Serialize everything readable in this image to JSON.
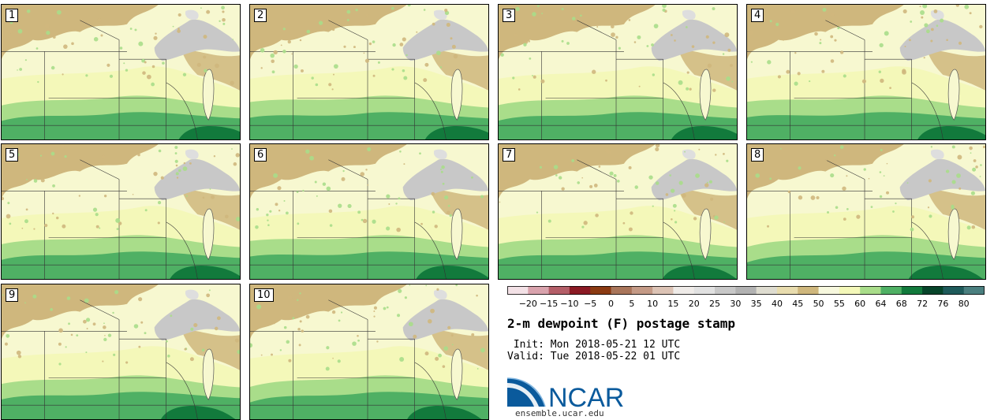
{
  "panels": [
    {
      "label": "1"
    },
    {
      "label": "2"
    },
    {
      "label": "3"
    },
    {
      "label": "4"
    },
    {
      "label": "5"
    },
    {
      "label": "6"
    },
    {
      "label": "7"
    },
    {
      "label": "8"
    },
    {
      "label": "9"
    },
    {
      "label": "10"
    }
  ],
  "colorbar": {
    "ticks": [
      "−20",
      "−15",
      "−10",
      "−5",
      "0",
      "5",
      "10",
      "15",
      "20",
      "25",
      "30",
      "35",
      "40",
      "45",
      "50",
      "55",
      "60",
      "64",
      "68",
      "72",
      "76",
      "80"
    ],
    "colors": [
      "#f3e1e6",
      "#d9a3ad",
      "#b45e68",
      "#8b1a24",
      "#8b3a12",
      "#a9755a",
      "#c49a86",
      "#dcc3b5",
      "#efebe8",
      "#e1e1e1",
      "#c8c8c8",
      "#b2b2b2",
      "#dedcd0",
      "#e8dcae",
      "#cfb77d",
      "#f7f8de",
      "#f4f8b9",
      "#a9dd8a",
      "#4fb064",
      "#127a3c",
      "#06442a",
      "#1e5a5a",
      "#4a7f7f"
    ]
  },
  "title": "2-m dewpoint (F) postage stamp",
  "init_line": " Init: Mon 2018-05-21 12 UTC",
  "valid_line": "Valid: Tue 2018-05-22 01 UTC",
  "logo": {
    "text": "NCAR",
    "url": "ensemble.ucar.edu",
    "brand_color": "#0a5a9c"
  },
  "map_colors": {
    "tan": "#cfb77d",
    "pale": "#f7f8d0",
    "yellow": "#f4f8b9",
    "light_green": "#a9dd8a",
    "green": "#4fb064",
    "dark_green": "#127a3c",
    "gray": "#c8c8c8",
    "light_gray": "#dedede"
  }
}
